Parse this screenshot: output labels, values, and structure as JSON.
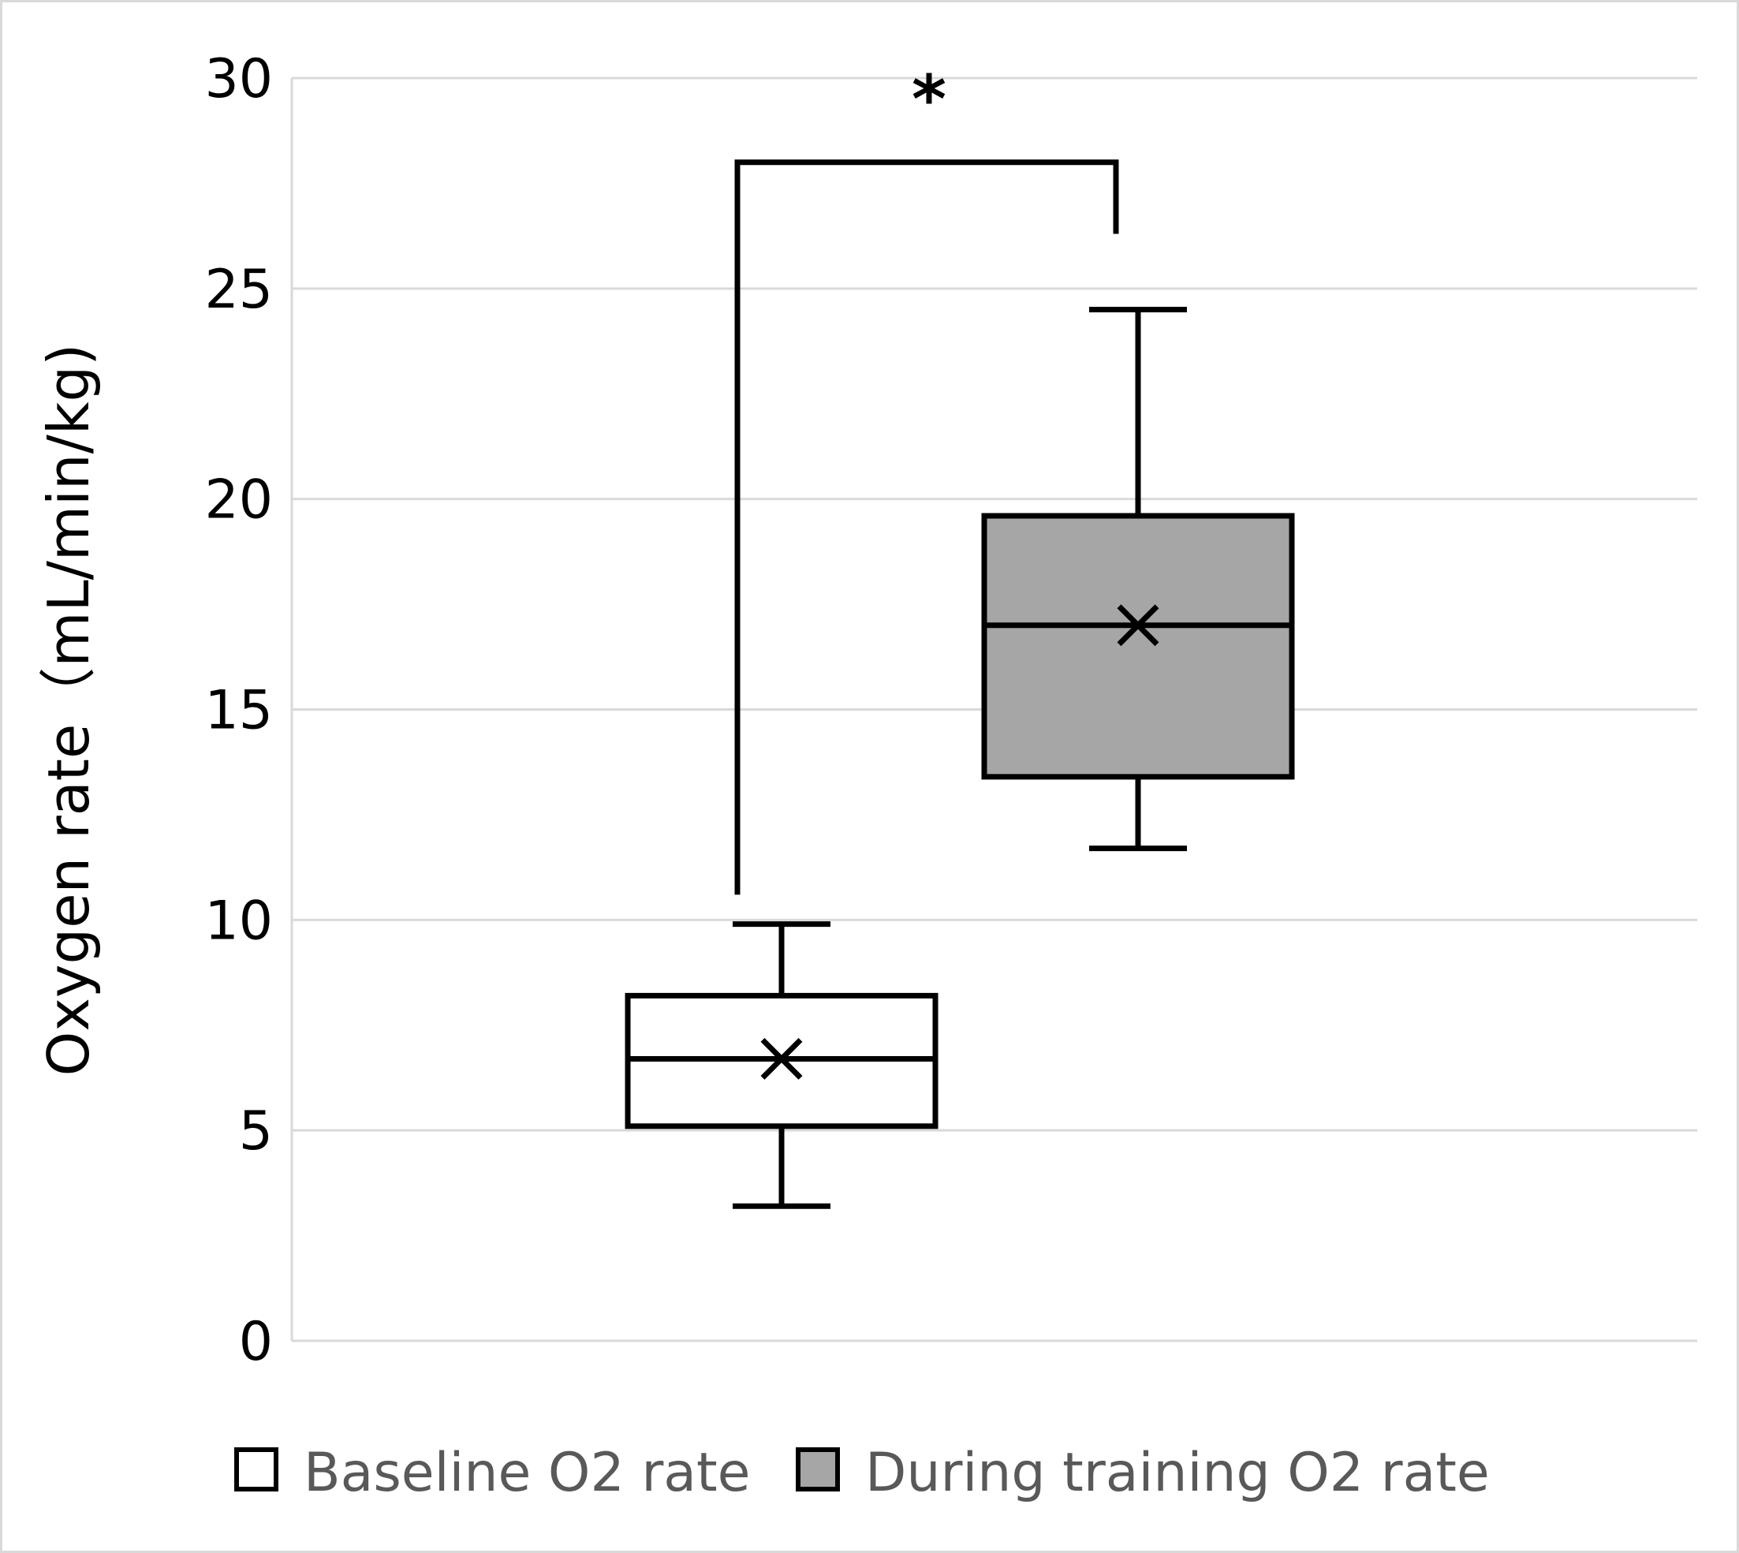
{
  "chart_data": {
    "type": "box",
    "ylabel": "Oxygen rate（mL/min/kg)",
    "ylim": [
      0,
      30
    ],
    "yticks": [
      0,
      5,
      10,
      15,
      20,
      25,
      30
    ],
    "grid": true,
    "legend_position": "bottom",
    "significance": {
      "label": "*",
      "between": [
        0,
        1
      ],
      "bracket_y": 28,
      "left_drop_to": 10.6,
      "right_drop_to": 26.3
    },
    "series": [
      {
        "name": "Baseline O2 rate",
        "fill": "#ffffff",
        "whisker_low": 3.2,
        "q1": 5.1,
        "median": 6.7,
        "mean": 6.7,
        "q3": 8.2,
        "whisker_high": 9.9
      },
      {
        "name": "During training O2 rate",
        "fill": "#a6a6a6",
        "whisker_low": 11.7,
        "q1": 13.4,
        "median": 17.0,
        "mean": 17.0,
        "q3": 19.6,
        "whisker_high": 24.5
      }
    ]
  }
}
